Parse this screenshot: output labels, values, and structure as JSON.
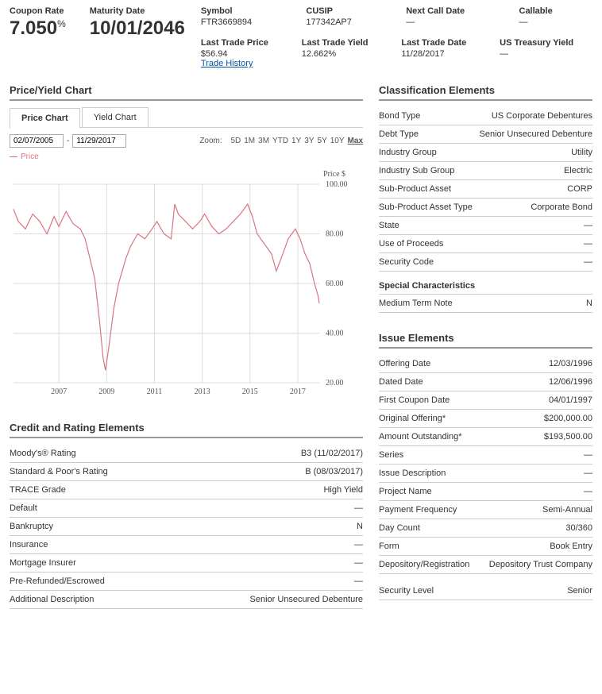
{
  "header": {
    "coupon_label": "Coupon Rate",
    "coupon_value": "7.050",
    "maturity_label": "Maturity Date",
    "maturity_value": "10/01/2046",
    "grid1": {
      "c1_label": "Symbol",
      "c1_val": "FTR3669894",
      "c2_label": "CUSIP",
      "c2_val": "177342AP7",
      "c3_label": "Next Call Date",
      "c3_val": "—",
      "c4_label": "Callable",
      "c4_val": "—"
    },
    "grid2": {
      "c1_label": "Last Trade Price",
      "c1_val": "$56.94",
      "c2_label": "Last Trade Yield",
      "c2_val": "12.662%",
      "c3_label": "Last Trade Date",
      "c3_val": "11/28/2017",
      "c4_label": "US Treasury Yield",
      "c4_val": "—"
    },
    "trade_history": "Trade History"
  },
  "chart": {
    "section_title": "Price/Yield Chart",
    "tabs": {
      "price": "Price Chart",
      "yield": "Yield Chart"
    },
    "date_from": "02/07/2005",
    "date_to": "11/29/2017",
    "zoom_label": "Zoom:",
    "zoom_items": [
      "5D",
      "1M",
      "3M",
      "YTD",
      "1Y",
      "3Y",
      "5Y",
      "10Y",
      "Max"
    ],
    "zoom_active": "Max",
    "legend": "Price",
    "y_axis_label": "Price $",
    "y_min": 20,
    "y_max": 100,
    "y_step": 20,
    "x_labels": [
      "2007",
      "2009",
      "2011",
      "2013",
      "2015",
      "2017"
    ],
    "x_min": 2005.1,
    "x_max": 2017.9,
    "line_color": "#d97482",
    "grid_color": "#dddddd",
    "series": [
      [
        2005.1,
        90
      ],
      [
        2005.3,
        85
      ],
      [
        2005.6,
        82
      ],
      [
        2005.9,
        88
      ],
      [
        2006.2,
        85
      ],
      [
        2006.5,
        80
      ],
      [
        2006.8,
        87
      ],
      [
        2007.0,
        83
      ],
      [
        2007.3,
        89
      ],
      [
        2007.6,
        84
      ],
      [
        2007.9,
        82
      ],
      [
        2008.1,
        78
      ],
      [
        2008.3,
        70
      ],
      [
        2008.5,
        62
      ],
      [
        2008.7,
        45
      ],
      [
        2008.85,
        30
      ],
      [
        2008.95,
        25
      ],
      [
        2009.1,
        35
      ],
      [
        2009.3,
        50
      ],
      [
        2009.5,
        60
      ],
      [
        2009.8,
        70
      ],
      [
        2010.0,
        75
      ],
      [
        2010.3,
        80
      ],
      [
        2010.6,
        78
      ],
      [
        2010.9,
        82
      ],
      [
        2011.1,
        85
      ],
      [
        2011.4,
        80
      ],
      [
        2011.7,
        78
      ],
      [
        2011.85,
        92
      ],
      [
        2012.0,
        88
      ],
      [
        2012.3,
        85
      ],
      [
        2012.6,
        82
      ],
      [
        2012.9,
        85
      ],
      [
        2013.1,
        88
      ],
      [
        2013.4,
        83
      ],
      [
        2013.7,
        80
      ],
      [
        2014.0,
        82
      ],
      [
        2014.3,
        85
      ],
      [
        2014.6,
        88
      ],
      [
        2014.9,
        92
      ],
      [
        2015.1,
        87
      ],
      [
        2015.3,
        80
      ],
      [
        2015.6,
        76
      ],
      [
        2015.9,
        72
      ],
      [
        2016.1,
        65
      ],
      [
        2016.3,
        70
      ],
      [
        2016.6,
        78
      ],
      [
        2016.9,
        82
      ],
      [
        2017.1,
        78
      ],
      [
        2017.3,
        72
      ],
      [
        2017.5,
        68
      ],
      [
        2017.7,
        60
      ],
      [
        2017.85,
        55
      ],
      [
        2017.9,
        52
      ]
    ]
  },
  "credit": {
    "title": "Credit and Rating Elements",
    "rows": [
      {
        "k": "Moody's® Rating",
        "v": "B3 (11/02/2017)"
      },
      {
        "k": "Standard & Poor's Rating",
        "v": "B (08/03/2017)"
      },
      {
        "k": "TRACE Grade",
        "v": "High Yield"
      },
      {
        "k": "Default",
        "v": "—"
      },
      {
        "k": "Bankruptcy",
        "v": "N"
      },
      {
        "k": "Insurance",
        "v": "—"
      },
      {
        "k": "Mortgage Insurer",
        "v": "—"
      },
      {
        "k": "Pre-Refunded/Escrowed",
        "v": "—"
      },
      {
        "k": "Additional Description",
        "v": "Senior Unsecured Debenture"
      }
    ]
  },
  "classification": {
    "title": "Classification Elements",
    "rows": [
      {
        "k": "Bond Type",
        "v": "US Corporate Debentures"
      },
      {
        "k": "Debt Type",
        "v": "Senior Unsecured Debenture"
      },
      {
        "k": "Industry Group",
        "v": "Utility"
      },
      {
        "k": "Industry Sub Group",
        "v": "Electric"
      },
      {
        "k": "Sub-Product Asset",
        "v": "CORP"
      },
      {
        "k": "Sub-Product Asset Type",
        "v": "Corporate Bond"
      },
      {
        "k": "State",
        "v": "—"
      },
      {
        "k": "Use of Proceeds",
        "v": "—"
      },
      {
        "k": "Security Code",
        "v": "—"
      }
    ],
    "special_title": "Special Characteristics",
    "special_rows": [
      {
        "k": "Medium Term Note",
        "v": "N"
      }
    ]
  },
  "issue": {
    "title": "Issue Elements",
    "rows": [
      {
        "k": "Offering Date",
        "v": "12/03/1996"
      },
      {
        "k": "Dated Date",
        "v": "12/06/1996"
      },
      {
        "k": "First Coupon Date",
        "v": "04/01/1997"
      },
      {
        "k": "Original Offering*",
        "v": "$200,000.00"
      },
      {
        "k": "Amount Outstanding*",
        "v": "$193,500.00"
      },
      {
        "k": "Series",
        "v": "—"
      },
      {
        "k": "Issue Description",
        "v": "—"
      },
      {
        "k": "Project Name",
        "v": "—"
      },
      {
        "k": "Payment Frequency",
        "v": "Semi-Annual"
      },
      {
        "k": "Day Count",
        "v": "30/360"
      },
      {
        "k": "Form",
        "v": "Book Entry"
      },
      {
        "k": "Depository/Registration",
        "v": "Depository Trust Company"
      }
    ],
    "rows2": [
      {
        "k": "Security Level",
        "v": "Senior"
      }
    ]
  }
}
